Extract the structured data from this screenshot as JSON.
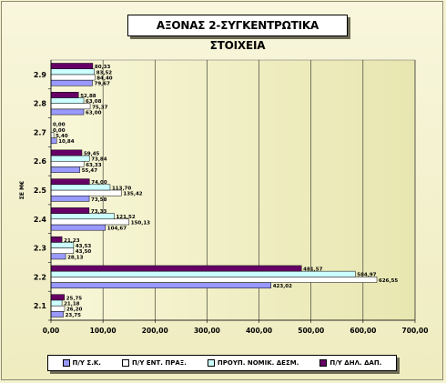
{
  "chart_data": {
    "type": "bar",
    "orientation": "horizontal",
    "title": "ΑΞΟΝΑΣ 2-ΣΥΓΚΕΝΤΡΩΤΙΚΑ ΣΤΟΙΧΕΙΑ",
    "xlabel": "",
    "ylabel": "ΣΕ M€",
    "xlim": [
      0,
      700
    ],
    "xticks": [
      "0,00",
      "100,00",
      "200,00",
      "300,00",
      "400,00",
      "500,00",
      "600,00",
      "700,00"
    ],
    "categories": [
      "2.1",
      "2.2",
      "2.3",
      "2.4",
      "2.5",
      "2.6",
      "2.7",
      "2.8",
      "2.9"
    ],
    "grid": true,
    "legend_position": "bottom",
    "series": [
      {
        "name": "Π/Υ Σ.Κ.",
        "color": "#9999ff",
        "values": [
          23.75,
          423.02,
          28.13,
          104.67,
          73.58,
          55.47,
          10.84,
          63.0,
          79.67
        ],
        "labels": [
          "23,75",
          "423,02",
          "28,13",
          "104,67",
          "73,58",
          "55,47",
          "10,84",
          "63,00",
          "79,67"
        ]
      },
      {
        "name": "Π/Υ ΕΝΤ. ΠΡΑΞ.",
        "color": "#ffffff",
        "values": [
          26.2,
          626.55,
          43.5,
          150.13,
          135.42,
          63.33,
          5.4,
          75.37,
          84.4
        ],
        "labels": [
          "26,20",
          "626,55",
          "43,50",
          "150,13",
          "135,42",
          "63,33",
          "5,40",
          "75,37",
          "84,40"
        ]
      },
      {
        "name": "ΠΡΟΥΠ. ΝΟΜΙΚ. ΔΕΣΜ.",
        "color": "#ccffff",
        "values": [
          21.18,
          584.97,
          43.53,
          121.52,
          113.7,
          73.84,
          0.0,
          63.08,
          83.52
        ],
        "labels": [
          "21,18",
          "584,97",
          "43,53",
          "121,52",
          "113,70",
          "73,84",
          "0,00",
          "63,08",
          "83,52"
        ]
      },
      {
        "name": "Π/Υ ΔΗΛ. ΔΑΠ.",
        "color": "#660066",
        "values": [
          25.75,
          481.57,
          21.23,
          73.33,
          74.0,
          59.45,
          0.0,
          52.88,
          80.33
        ],
        "labels": [
          "25,75",
          "481,57",
          "21,23",
          "73,33",
          "74,00",
          "59,45",
          "0,00",
          "52,88",
          "80,33"
        ]
      }
    ]
  }
}
